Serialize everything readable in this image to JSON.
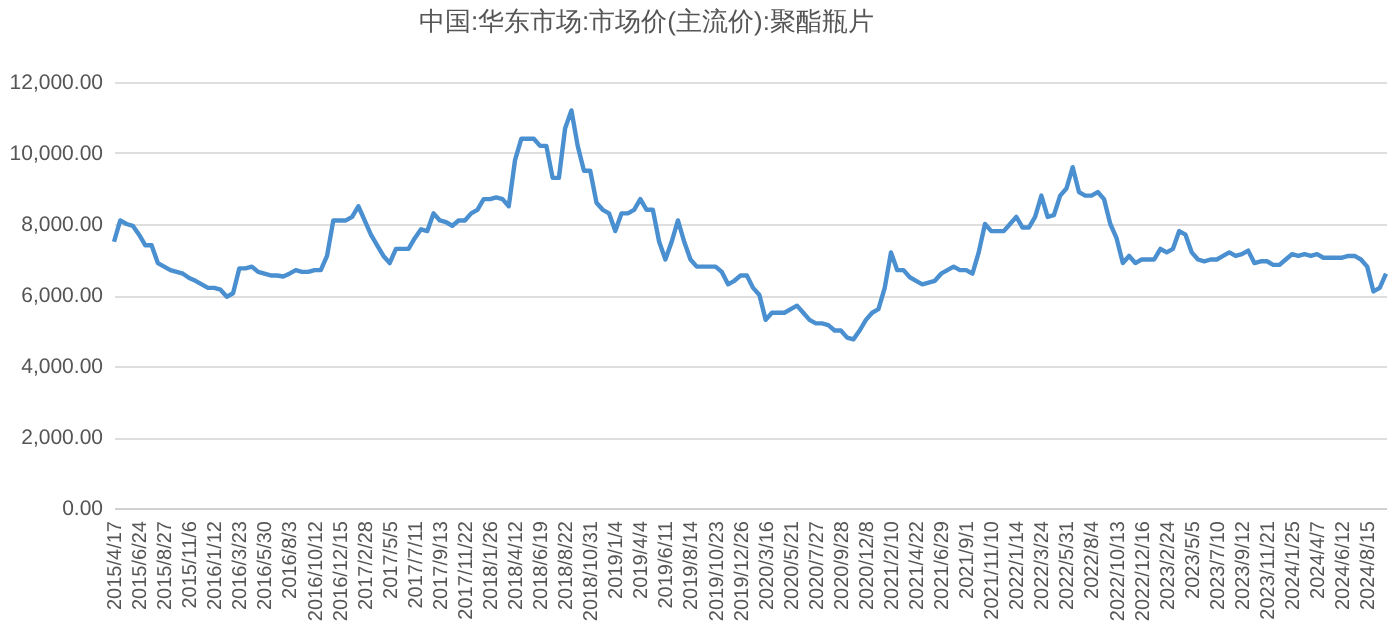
{
  "chart_data": {
    "type": "line",
    "title": "中国:华东市场:市场价(主流价):聚酯瓶片",
    "categories": [
      "2015/4/17",
      null,
      null,
      null,
      "2015/6/24",
      null,
      null,
      null,
      "2015/8/27",
      null,
      null,
      null,
      "2015/11/6",
      null,
      null,
      null,
      "2016/1/12",
      null,
      null,
      null,
      "2016/3/23",
      null,
      null,
      null,
      "2016/5/30",
      null,
      null,
      null,
      "2016/8/3",
      null,
      null,
      null,
      "2016/10/12",
      null,
      null,
      null,
      "2016/12/15",
      null,
      null,
      null,
      "2017/2/28",
      null,
      null,
      null,
      "2017/5/5",
      null,
      null,
      null,
      "2017/7/11",
      null,
      null,
      null,
      "2017/9/13",
      null,
      null,
      null,
      "2017/11/22",
      null,
      null,
      null,
      "2018/1/26",
      null,
      null,
      null,
      "2018/4/12",
      null,
      null,
      null,
      "2018/6/19",
      null,
      null,
      null,
      "2018/8/22",
      null,
      null,
      null,
      "2018/10/31",
      null,
      null,
      null,
      "2019/1/4",
      null,
      null,
      null,
      "2019/4/4",
      null,
      null,
      null,
      "2019/6/11",
      null,
      null,
      null,
      "2019/8/14",
      null,
      null,
      null,
      "2019/10/23",
      null,
      null,
      null,
      "2019/12/26",
      null,
      null,
      null,
      "2020/3/16",
      null,
      null,
      null,
      "2020/5/21",
      null,
      null,
      null,
      "2020/7/27",
      null,
      null,
      null,
      "2020/9/28",
      null,
      null,
      null,
      "2020/12/8",
      null,
      null,
      null,
      "2021/2/10",
      null,
      null,
      null,
      "2021/4/22",
      null,
      null,
      null,
      "2021/6/29",
      null,
      null,
      null,
      "2021/9/1",
      null,
      null,
      null,
      "2021/11/10",
      null,
      null,
      null,
      "2022/1/14",
      null,
      null,
      null,
      "2022/3/24",
      null,
      null,
      null,
      "2022/5/31",
      null,
      null,
      null,
      "2022/8/4",
      null,
      null,
      null,
      "2022/10/13",
      null,
      null,
      null,
      "2022/12/16",
      null,
      null,
      null,
      "2023/2/24",
      null,
      null,
      null,
      "2023/5/5",
      null,
      null,
      null,
      "2023/7/10",
      null,
      null,
      null,
      "2023/9/12",
      null,
      null,
      null,
      "2023/11/21",
      null,
      null,
      null,
      "2024/1/25",
      null,
      null,
      null,
      "2024/4/7",
      null,
      null,
      null,
      "2024/6/12",
      null,
      null,
      null,
      "2024/8/15",
      null,
      null,
      null
    ],
    "series": [
      {
        "color": "#4a8fd0",
        "values": [
          7500,
          8100,
          8000,
          7950,
          7700,
          7400,
          7400,
          6900,
          6800,
          6700,
          6650,
          6600,
          6480,
          6400,
          6300,
          6200,
          6200,
          6150,
          5950,
          6050,
          6750,
          6750,
          6800,
          6650,
          6600,
          6550,
          6550,
          6520,
          6600,
          6700,
          6650,
          6650,
          6700,
          6700,
          7100,
          8100,
          8100,
          8100,
          8200,
          8500,
          8100,
          7700,
          7400,
          7100,
          6900,
          7300,
          7300,
          7300,
          7600,
          7850,
          7800,
          8300,
          8100,
          8050,
          7950,
          8100,
          8100,
          8300,
          8400,
          8700,
          8700,
          8750,
          8700,
          8500,
          9800,
          10400,
          10400,
          10400,
          10200,
          10200,
          9300,
          9300,
          10700,
          11200,
          10200,
          9500,
          9500,
          8600,
          8400,
          8300,
          7800,
          8300,
          8300,
          8400,
          8700,
          8400,
          8400,
          7500,
          7000,
          7500,
          8100,
          7500,
          7000,
          6800,
          6800,
          6800,
          6800,
          6650,
          6300,
          6400,
          6550,
          6550,
          6200,
          6000,
          5300,
          5500,
          5500,
          5500,
          5600,
          5700,
          5500,
          5300,
          5200,
          5200,
          5150,
          5000,
          5000,
          4800,
          4750,
          5000,
          5300,
          5500,
          5600,
          6200,
          7200,
          6700,
          6700,
          6500,
          6400,
          6300,
          6350,
          6400,
          6600,
          6700,
          6800,
          6700,
          6700,
          6600,
          7200,
          8000,
          7800,
          7800,
          7800,
          8000,
          8200,
          7900,
          7900,
          8200,
          8800,
          8200,
          8250,
          8800,
          9000,
          9600,
          8900,
          8800,
          8800,
          8900,
          8700,
          8000,
          7600,
          6900,
          7100,
          6900,
          7000,
          7000,
          7000,
          7300,
          7200,
          7300,
          7800,
          7700,
          7200,
          7000,
          6950,
          7000,
          7000,
          7100,
          7200,
          7100,
          7150,
          7250,
          6900,
          6950,
          6950,
          6850,
          6850,
          7000,
          7150,
          7100,
          7150,
          7100,
          7150,
          7050,
          7050,
          7050,
          7050,
          7100,
          7100,
          7000,
          6800,
          6100,
          6200,
          6600
        ]
      }
    ],
    "ylim": [
      0,
      12000
    ],
    "yticks": [
      {
        "value": 0,
        "label": "0.00"
      },
      {
        "value": 2000,
        "label": "2,000.00"
      },
      {
        "value": 4000,
        "label": "4,000.00"
      },
      {
        "value": 6000,
        "label": "6,000.00"
      },
      {
        "value": 8000,
        "label": "8,000.00"
      },
      {
        "value": 10000,
        "label": "10,000.00"
      },
      {
        "value": 12000,
        "label": "12,000.00"
      }
    ],
    "grid": "y"
  }
}
